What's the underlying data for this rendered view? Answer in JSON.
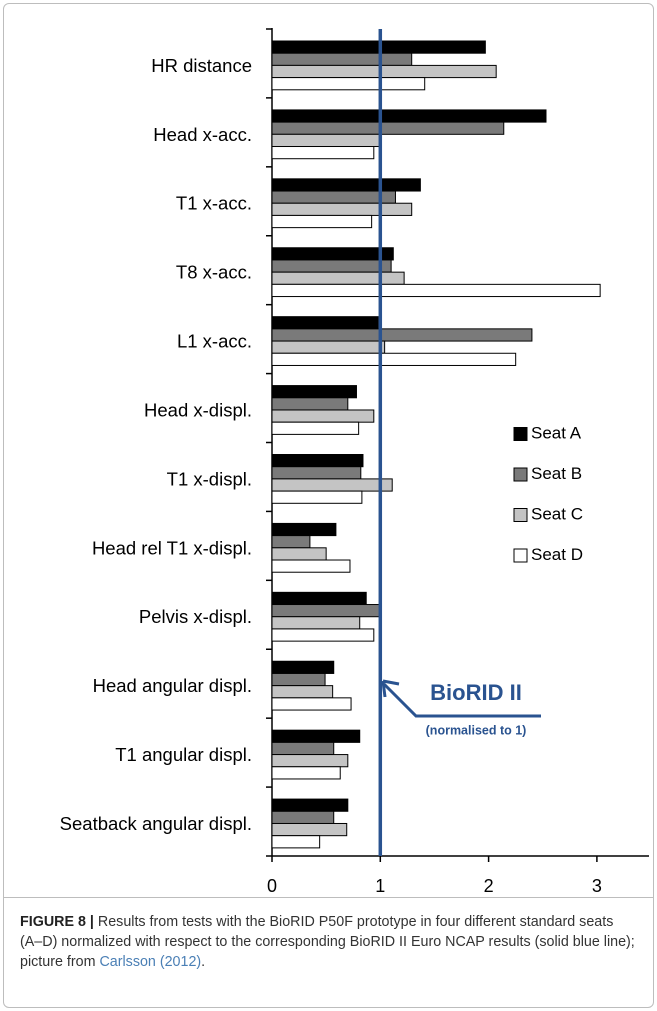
{
  "chart_data": {
    "type": "bar",
    "orientation": "horizontal",
    "categories": [
      "HR distance",
      "Head x-acc.",
      "T1 x-acc.",
      "T8 x-acc.",
      "L1 x-acc.",
      "Head x-displ.",
      "T1 x-displ.",
      "Head rel T1 x-displ.",
      "Pelvis x-displ.",
      "Head angular displ.",
      "T1 angular displ.",
      "Seatback angular displ."
    ],
    "series": [
      {
        "name": "Seat A",
        "color": "#000000",
        "values": [
          1.97,
          2.53,
          1.37,
          1.12,
          0.98,
          0.78,
          0.84,
          0.59,
          0.87,
          0.57,
          0.81,
          0.7
        ]
      },
      {
        "name": "Seat B",
        "color": "#7a7a7a",
        "values": [
          1.29,
          2.14,
          1.14,
          1.1,
          2.4,
          0.7,
          0.82,
          0.35,
          1.0,
          0.49,
          0.57,
          0.57
        ]
      },
      {
        "name": "Seat C",
        "color": "#c4c4c4",
        "values": [
          2.07,
          1.01,
          1.29,
          1.22,
          1.04,
          0.94,
          1.11,
          0.5,
          0.81,
          0.56,
          0.7,
          0.69
        ]
      },
      {
        "name": "Seat D",
        "color": "#ffffff",
        "values": [
          1.41,
          0.94,
          0.92,
          3.03,
          2.25,
          0.8,
          0.83,
          0.72,
          0.94,
          0.73,
          0.63,
          0.44
        ]
      }
    ],
    "xlim": [
      0,
      3.5
    ],
    "xticks": [
      0,
      1,
      2,
      3
    ],
    "legend": "right",
    "reference_line": {
      "value": 1,
      "color": "#2a5390"
    },
    "annotation": {
      "title": "BioRID II",
      "subtitle": "(normalised to 1)"
    }
  },
  "caption": {
    "label": "FIGURE 8 |",
    "text": " Results from tests with the BioRID P50F prototype in four different standard seats (A–D) normalized with respect to the corresponding BioRID II Euro NCAP results (solid blue line); picture from ",
    "link": "Carlsson (2012)",
    "end": "."
  }
}
